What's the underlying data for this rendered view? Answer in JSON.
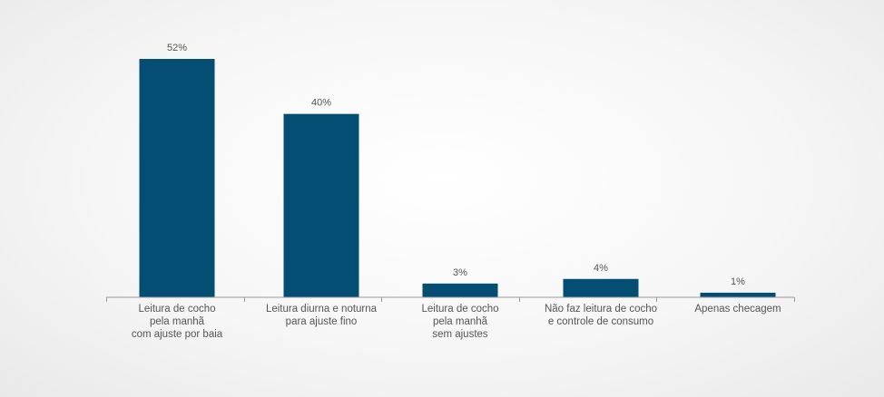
{
  "chart_data": {
    "type": "bar",
    "categories": [
      [
        "Leitura de cocho",
        "pela manhã",
        "com ajuste por baia"
      ],
      [
        "Leitura diurna e noturna",
        "para ajuste fino"
      ],
      [
        "Leitura de cocho",
        "pela manhã",
        "sem ajustes"
      ],
      [
        "Não faz leitura de cocho",
        "e controle de consumo"
      ],
      [
        "Apenas checagem"
      ]
    ],
    "values": [
      52,
      40,
      3,
      4,
      1
    ],
    "value_labels": [
      "52%",
      "40%",
      "3%",
      "4%",
      "1%"
    ],
    "value_unit": "%",
    "ylim": [
      0,
      52
    ],
    "bar_color": "#044e74",
    "grid": false,
    "legend": "none"
  }
}
